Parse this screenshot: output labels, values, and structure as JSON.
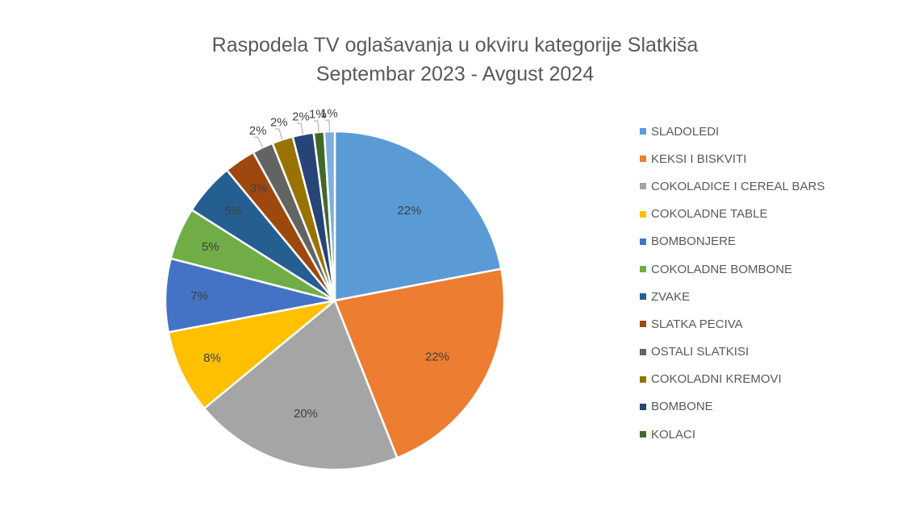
{
  "chart_data": {
    "type": "pie",
    "title": "Raspodela TV oglašavanja u okviru kategorije Slatkiša",
    "subtitle": "Septembar 2023 - Avgust 2024",
    "legend_position": "right",
    "slices": [
      {
        "name": "SLADOLEDI",
        "value": 22,
        "label": "22%",
        "color": "#5B9BD5"
      },
      {
        "name": "KEKSI I BISKVITI",
        "value": 22,
        "label": "22%",
        "color": "#ED7D31"
      },
      {
        "name": "COKOLADICE I CEREAL BARS",
        "value": 20,
        "label": "20%",
        "color": "#A5A5A5"
      },
      {
        "name": "COKOLADNE TABLE",
        "value": 8,
        "label": "8%",
        "color": "#FFC000"
      },
      {
        "name": "BOMBONJERE",
        "value": 7,
        "label": "7%",
        "color": "#4472C4"
      },
      {
        "name": "COKOLADNE BOMBONE",
        "value": 5,
        "label": "5%",
        "color": "#70AD47"
      },
      {
        "name": "ZVAKE",
        "value": 5,
        "label": "5%",
        "color": "#255E91"
      },
      {
        "name": "SLATKA PECIVA",
        "value": 3,
        "label": "3%",
        "color": "#9E480E"
      },
      {
        "name": "OSTALI SLATKISI",
        "value": 2,
        "label": "2%",
        "color": "#636363"
      },
      {
        "name": "COKOLADNI KREMOVI",
        "value": 2,
        "label": "2%",
        "color": "#997300"
      },
      {
        "name": "BOMBONE",
        "value": 2,
        "label": "2%",
        "color": "#264478"
      },
      {
        "name": "KOLACI",
        "value": 1,
        "label": "1%",
        "color": "#43682B"
      },
      {
        "name": "",
        "value": 1,
        "label": "1%",
        "color": "#7CAFDD"
      }
    ]
  }
}
